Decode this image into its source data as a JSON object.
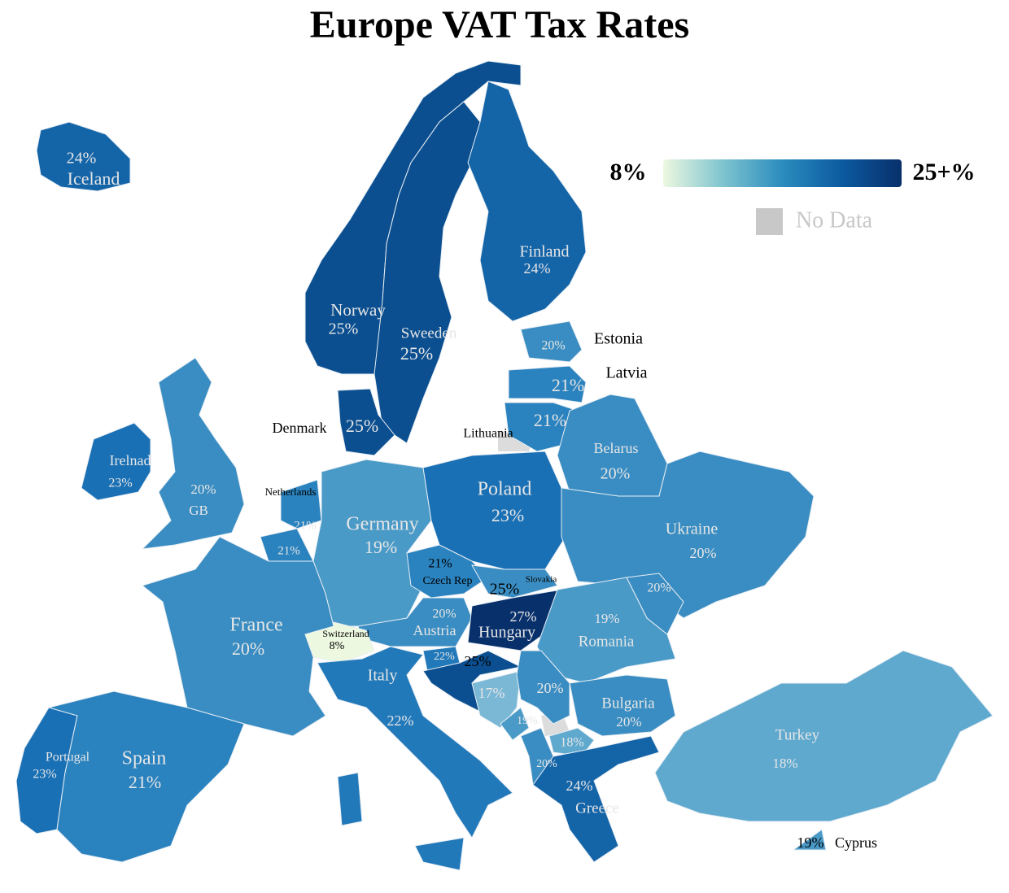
{
  "title": "Europe VAT Tax Rates",
  "legend": {
    "min_label": "8%",
    "max_label": "25+%",
    "no_data": "No Data",
    "gradient": [
      "#edf8e0",
      "#7ec4cf",
      "#2b8cbe",
      "#0b5aa0",
      "#08306b"
    ],
    "no_data_color": "#c8c8c8"
  },
  "countries": [
    {
      "name": "Iceland",
      "value": 24,
      "label": "24%",
      "color": "#1464a8"
    },
    {
      "name": "Norway",
      "value": 25,
      "label": "25%",
      "color": "#0b4f90"
    },
    {
      "name": "Sweeden",
      "value": 25,
      "label": "25%",
      "color": "#0b4f90"
    },
    {
      "name": "Finland",
      "value": 24,
      "label": "24%",
      "color": "#1464a8"
    },
    {
      "name": "Denmark",
      "value": 25,
      "label": "25%",
      "color": "#0b4f90"
    },
    {
      "name": "Estonia",
      "value": 20,
      "label": "20%",
      "color": "#3a8dc2"
    },
    {
      "name": "Latvia",
      "value": 21,
      "label": "21%",
      "color": "#2a82be"
    },
    {
      "name": "Lithuania",
      "value": 21,
      "label": "21%",
      "color": "#2a82be"
    },
    {
      "name": "Belarus",
      "value": 20,
      "label": "20%",
      "color": "#3a8dc2"
    },
    {
      "name": "Irelnad",
      "value": 23,
      "label": "23%",
      "color": "#1a70b5"
    },
    {
      "name": "GB",
      "value": 20,
      "label": "20%",
      "color": "#3a8dc2"
    },
    {
      "name": "Netherlands",
      "value": 21,
      "label": "21%",
      "color": "#2a82be"
    },
    {
      "name": null,
      "value": 21,
      "label": "21%",
      "color": "#2a82be"
    },
    {
      "name": "Germany",
      "value": 19,
      "label": "19%",
      "color": "#4a9ac8"
    },
    {
      "name": "Poland",
      "value": 23,
      "label": "23%",
      "color": "#1a70b5"
    },
    {
      "name": "Czech Rep",
      "value": 21,
      "label": "21%",
      "color": "#2a82be"
    },
    {
      "name": "Slovakia",
      "value": 25,
      "label": "25%",
      "color": "#3a8dc2"
    },
    {
      "name": "Austria",
      "value": 20,
      "label": "20%",
      "color": "#3a8dc2"
    },
    {
      "name": "Hungary",
      "value": 27,
      "label": "27%",
      "color": "#08306b"
    },
    {
      "name": "Ukraine",
      "value": 20,
      "label": "20%",
      "color": "#3a8dc2"
    },
    {
      "name": null,
      "value": 20,
      "label": "20%",
      "color": "#3a8dc2"
    },
    {
      "name": "Romania",
      "value": 19,
      "label": "19%",
      "color": "#4a9ac8"
    },
    {
      "name": "Switzerland",
      "value": 8,
      "label": "8%",
      "color": "#edf8e0"
    },
    {
      "name": "France",
      "value": 20,
      "label": "20%",
      "color": "#3a8dc2"
    },
    {
      "name": "Italy",
      "value": 22,
      "label": "22%",
      "color": "#2279ba"
    },
    {
      "name": null,
      "value": 22,
      "label": "22%",
      "color": "#2279ba"
    },
    {
      "name": null,
      "value": 25,
      "label": "25%",
      "color": "#0b4f90"
    },
    {
      "name": null,
      "value": 17,
      "label": "17%",
      "color": "#7ab8d6"
    },
    {
      "name": null,
      "value": 20,
      "label": "20%",
      "color": "#3a8dc2"
    },
    {
      "name": null,
      "value": 19,
      "label": "19%",
      "color": "#4a9ac8"
    },
    {
      "name": null,
      "value": 18,
      "label": "18%",
      "color": "#5fa9cf"
    },
    {
      "name": null,
      "value": 20,
      "label": "20%",
      "color": "#3a8dc2"
    },
    {
      "name": "Bulgaria",
      "value": 20,
      "label": "20%",
      "color": "#3a8dc2"
    },
    {
      "name": "Greece",
      "value": 24,
      "label": "24%",
      "color": "#1464a8"
    },
    {
      "name": "Turkey",
      "value": 18,
      "label": "18%",
      "color": "#5fa9cf"
    },
    {
      "name": "Cyprus",
      "value": 19,
      "label": "19%",
      "color": "#4a9ac8"
    },
    {
      "name": "Portugal",
      "value": 23,
      "label": "23%",
      "color": "#1a70b5"
    },
    {
      "name": "Spain",
      "value": 21,
      "label": "21%",
      "color": "#2a82be"
    }
  ]
}
